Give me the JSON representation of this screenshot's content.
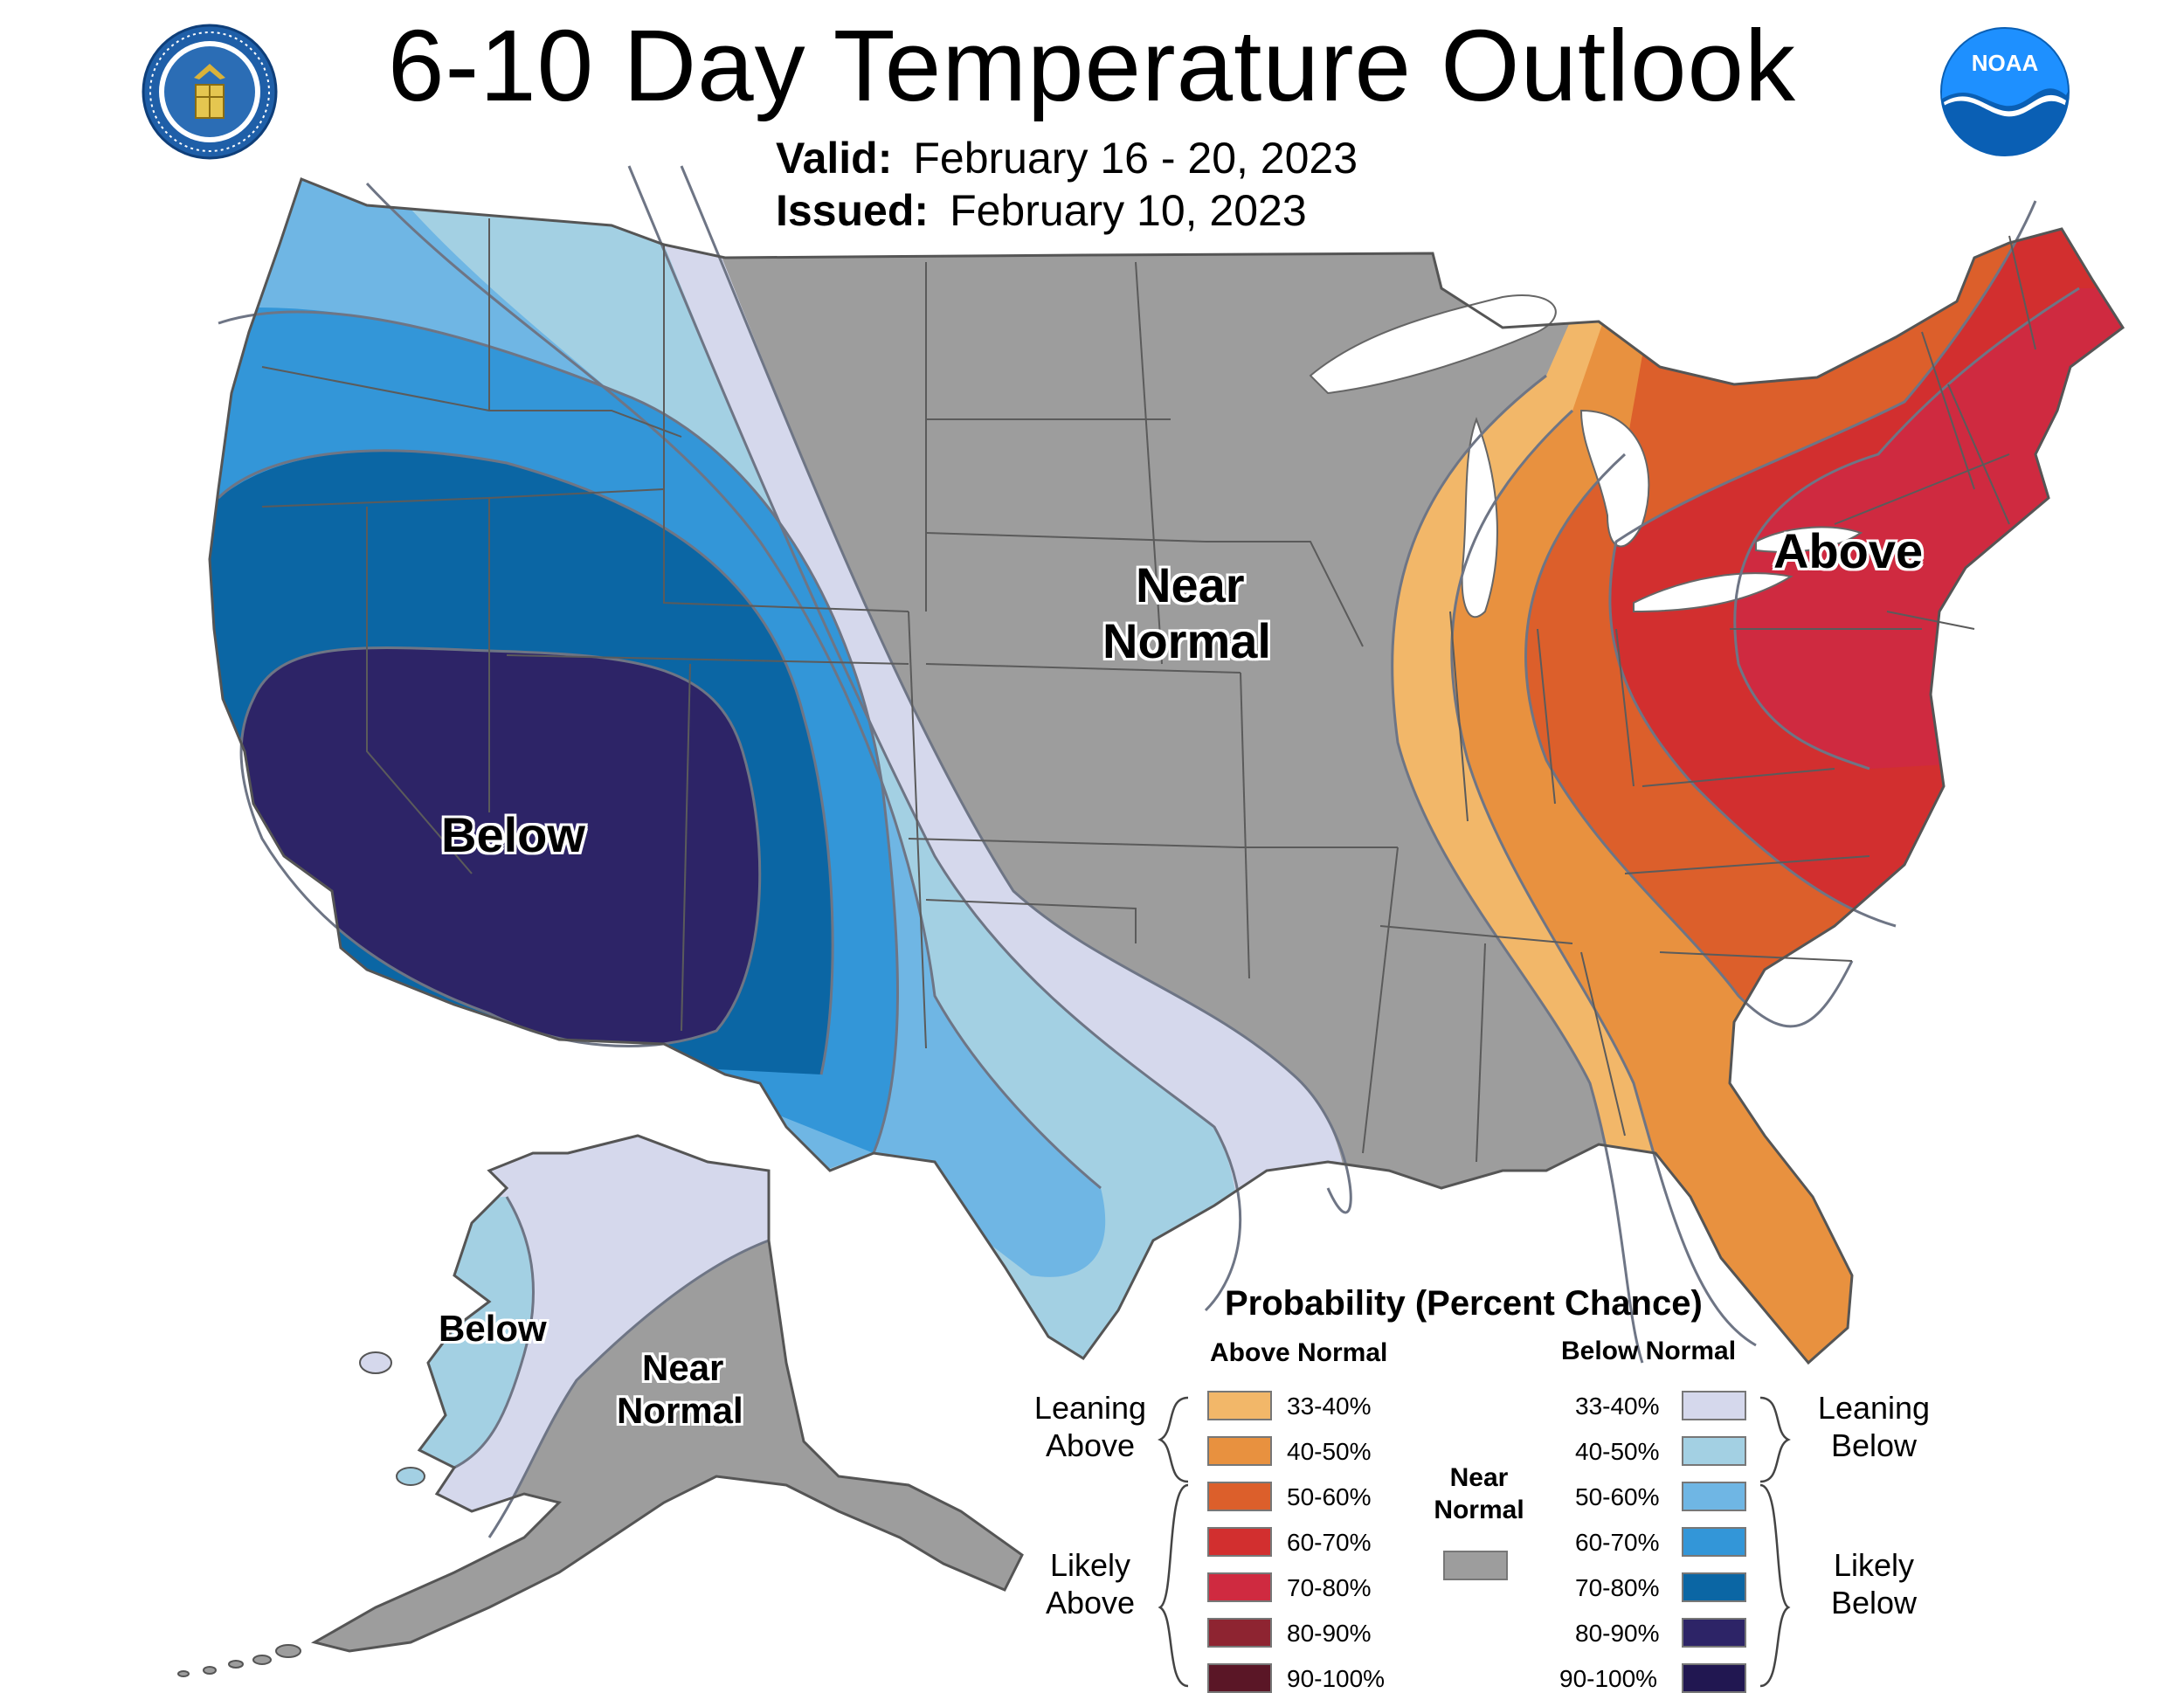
{
  "title": "6-10 Day Temperature Outlook",
  "valid_label": "Valid:",
  "valid_value": "February 16 - 20, 2023",
  "issued_label": "Issued:",
  "issued_value": "February 10, 2023",
  "logos": {
    "left": "department-of-commerce-seal",
    "right": "noaa-logo"
  },
  "map_labels": {
    "conus_below": "Below",
    "conus_near_1": "Near",
    "conus_near_2": "Normal",
    "conus_above": "Above",
    "ak_below": "Below",
    "ak_near_1": "Near",
    "ak_near_2": "Normal"
  },
  "legend": {
    "title": "Probability (Percent Chance)",
    "above_heading": "Above Normal",
    "below_heading": "Below Normal",
    "near_heading_1": "Near",
    "near_heading_2": "Normal",
    "leaning_above_1": "Leaning",
    "leaning_above_2": "Above",
    "likely_above_1": "Likely",
    "likely_above_2": "Above",
    "leaning_below_1": "Leaning",
    "leaning_below_2": "Below",
    "likely_below_1": "Likely",
    "likely_below_2": "Below",
    "above_items": [
      {
        "label": "33-40%",
        "color": "#f2b769"
      },
      {
        "label": "40-50%",
        "color": "#e8913f"
      },
      {
        "label": "50-60%",
        "color": "#dc5f2b"
      },
      {
        "label": "60-70%",
        "color": "#d22f2f"
      },
      {
        "label": "70-80%",
        "color": "#cf2a40"
      },
      {
        "label": "80-90%",
        "color": "#8e2431"
      },
      {
        "label": "90-100%",
        "color": "#5a1626"
      }
    ],
    "below_items": [
      {
        "label": "33-40%",
        "color": "#d5d8ec"
      },
      {
        "label": "40-50%",
        "color": "#a3d0e3"
      },
      {
        "label": "50-60%",
        "color": "#6fb6e4"
      },
      {
        "label": "60-70%",
        "color": "#3396d8"
      },
      {
        "label": "70-80%",
        "color": "#0b66a4"
      },
      {
        "label": "80-90%",
        "color": "#2d2467"
      },
      {
        "label": "90-100%",
        "color": "#211751"
      }
    ],
    "near_color": "#9d9d9d"
  }
}
